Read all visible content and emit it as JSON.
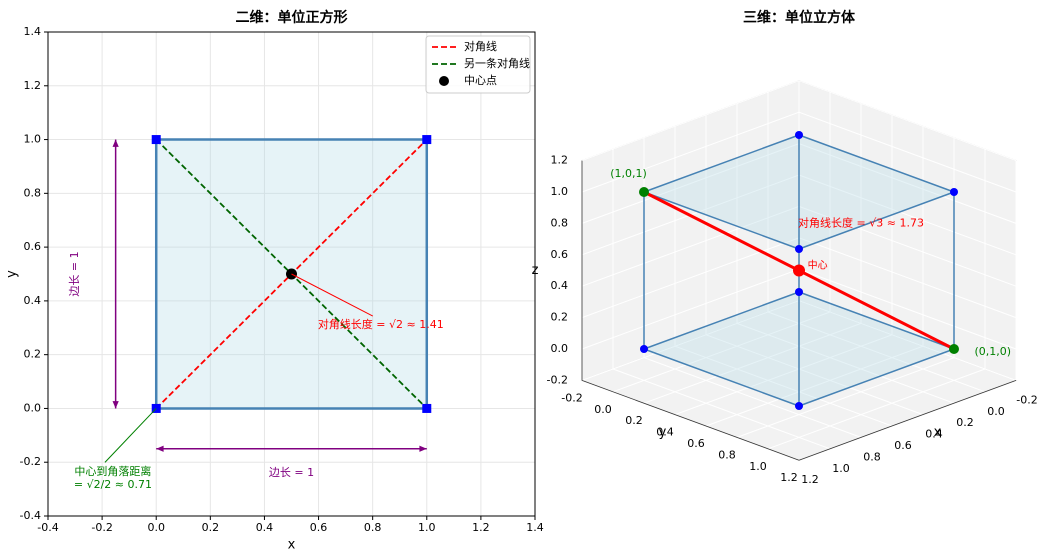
{
  "chart_data": [
    {
      "type": "line",
      "title": "二维：单位正方形",
      "x_label": "x",
      "y_label": "y",
      "xlim": [
        -0.4,
        1.4
      ],
      "ylim": [
        -0.4,
        1.4
      ],
      "xticks": [
        -0.4,
        -0.2,
        {
          "value": 0,
          "label": "0.0"
        },
        0.2,
        0.4,
        0.6,
        0.8,
        {
          "value": 1,
          "label": "1.0"
        },
        1.2,
        1.4
      ],
      "yticks": [
        -0.4,
        -0.2,
        {
          "value": 0,
          "label": "0.0"
        },
        0.2,
        0.4,
        0.6,
        0.8,
        {
          "value": 1,
          "label": "1.0"
        },
        1.2,
        1.4
      ],
      "grid": true,
      "legend": "upper right",
      "series": [
        {
          "color": "#4682b4",
          "fill": "#add8e6",
          "x": [
            0,
            1,
            1,
            0,
            0
          ],
          "y": [
            0,
            0,
            1,
            1,
            0
          ]
        },
        {
          "name": "对角线",
          "color": "red",
          "style": "dashed",
          "x": [
            0,
            1
          ],
          "y": [
            0,
            1
          ]
        },
        {
          "name": "另一条对角线",
          "color": "darkgreen",
          "style": "dashed",
          "x": [
            0,
            1
          ],
          "y": [
            1,
            0
          ]
        },
        {
          "name": "中心点",
          "color": "black",
          "marker": "circle",
          "x": [
            0.5
          ],
          "y": [
            0.5
          ]
        },
        {
          "color": "blue",
          "marker": "square",
          "x": [
            0,
            1,
            1,
            0
          ],
          "y": [
            0,
            0,
            1,
            1
          ]
        }
      ],
      "annotations": [
        {
          "text": "对角线长度 = √2 ≈ 1.41",
          "x": 0.83,
          "y": 0.31,
          "color": "red",
          "arrow": [
            0.5,
            0.5
          ]
        },
        {
          "lines": [
            "中心到角落距离",
            "= √2/2 ≈ 0.71"
          ],
          "x": -0.16,
          "y": -0.26,
          "color": "green",
          "arrow": [
            0,
            0
          ]
        },
        {
          "text": "边长 = 1",
          "x": 0.5,
          "y": -0.24,
          "color": "purple",
          "span": [
            [
              0,
              -0.15
            ],
            [
              1,
              -0.15
            ]
          ]
        },
        {
          "text": "边长 = 1",
          "x": -0.3,
          "y": 0.5,
          "color": "purple",
          "rotation": 90,
          "span": [
            [
              -0.15,
              0
            ],
            [
              -0.15,
              1
            ]
          ]
        }
      ]
    },
    {
      "type": "line3d",
      "title": "三维：单位立方体",
      "x_label": "x",
      "y_label": "y",
      "z_label": "z",
      "xlim": [
        -0.2,
        1.2
      ],
      "ylim": [
        -0.2,
        1.2
      ],
      "zlim": [
        -0.2,
        1.2
      ],
      "xticks": [
        -0.2,
        {
          "value": 0,
          "label": "0.0"
        },
        0.2,
        0.4,
        0.6,
        0.8,
        {
          "value": 1,
          "label": "1.0"
        },
        1.2
      ],
      "yticks": [
        -0.2,
        {
          "value": 0,
          "label": "0.0"
        },
        0.2,
        0.4,
        0.6,
        0.8,
        {
          "value": 1,
          "label": "1.0"
        },
        1.2
      ],
      "zticks": [
        -0.2,
        {
          "value": 0,
          "label": "0.0"
        },
        0.2,
        0.4,
        0.6,
        0.8,
        {
          "value": 1,
          "label": "1.0"
        },
        1.2
      ],
      "grid": true,
      "face_color": "#add8e6",
      "series": [
        {
          "color": "#4682b4",
          "x": [
            0,
            1,
            null,
            1,
            1,
            null,
            1,
            0,
            null,
            0,
            0,
            null,
            0,
            1,
            null,
            1,
            1,
            null,
            1,
            0,
            null,
            0,
            0,
            null,
            0,
            0,
            null,
            1,
            1,
            null,
            1,
            1,
            null,
            0,
            0
          ],
          "y": [
            0,
            0,
            null,
            0,
            1,
            null,
            1,
            1,
            null,
            1,
            0,
            null,
            0,
            0,
            null,
            0,
            1,
            null,
            1,
            1,
            null,
            1,
            0,
            null,
            0,
            0,
            null,
            0,
            0,
            null,
            1,
            1,
            null,
            1,
            1
          ],
          "z": [
            0,
            0,
            null,
            0,
            0,
            null,
            0,
            0,
            null,
            0,
            0,
            null,
            1,
            1,
            null,
            1,
            1,
            null,
            1,
            1,
            null,
            1,
            1,
            null,
            0,
            1,
            null,
            0,
            1,
            null,
            0,
            1,
            null,
            0,
            1
          ]
        },
        {
          "color": "blue",
          "marker": "circle",
          "x": [
            0,
            1,
            1,
            0,
            0,
            1,
            1,
            0
          ],
          "y": [
            0,
            0,
            1,
            1,
            0,
            0,
            1,
            1
          ],
          "z": [
            0,
            0,
            0,
            0,
            1,
            1,
            1,
            1
          ]
        },
        {
          "color": "red",
          "x": [
            1,
            0
          ],
          "y": [
            0,
            1
          ],
          "z": [
            1,
            0
          ]
        },
        {
          "color": "green",
          "marker": "circle",
          "x": [
            1,
            0
          ],
          "y": [
            0,
            1
          ],
          "z": [
            1,
            0
          ]
        },
        {
          "color": "red",
          "marker": "circle",
          "x": [
            0.5
          ],
          "y": [
            0.5
          ],
          "z": [
            0.5
          ]
        }
      ],
      "annotations": [
        {
          "text": "对角线长度 = √3 ≈ 1.73",
          "x": 0.3,
          "y": 0.7,
          "z": 0.8,
          "color": "red"
        },
        {
          "text": "中心",
          "x": 0.45,
          "y": 0.57,
          "z": 0.54,
          "color": "red"
        },
        {
          "text": "(1,0,1)",
          "x": 1.1,
          "y": 0,
          "z": 1.15,
          "color": "green"
        },
        {
          "text": "(0,1,0)",
          "x": -0.1,
          "y": 1.15,
          "z": 0,
          "color": "green"
        }
      ]
    }
  ]
}
